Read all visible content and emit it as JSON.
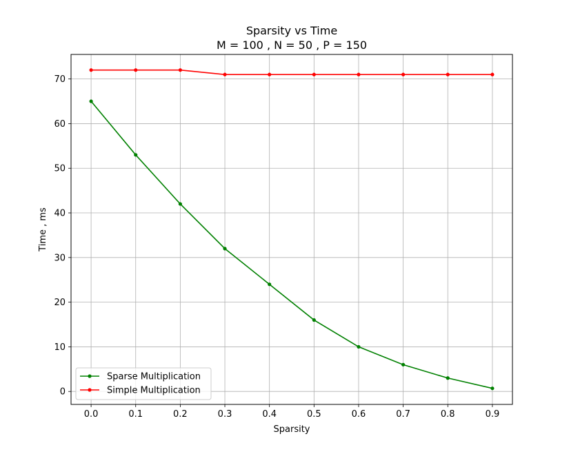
{
  "chart_data": {
    "type": "line",
    "title": "Sparsity vs Time",
    "subtitle": "M = 100 , N = 50 , P = 150",
    "xlabel": "Sparsity",
    "ylabel": "Time , ms",
    "x": [
      0.0,
      0.1,
      0.2,
      0.3,
      0.4,
      0.5,
      0.6,
      0.7,
      0.8,
      0.9
    ],
    "x_tick_labels": [
      "0.0",
      "0.1",
      "0.2",
      "0.3",
      "0.4",
      "0.5",
      "0.6",
      "0.7",
      "0.8",
      "0.9"
    ],
    "y_ticks": [
      0,
      10,
      20,
      30,
      40,
      50,
      60,
      70
    ],
    "y_tick_labels": [
      "0",
      "10",
      "20",
      "30",
      "40",
      "50",
      "60",
      "70"
    ],
    "xlim": [
      -0.045,
      0.945
    ],
    "ylim": [
      -2.9,
      75.5
    ],
    "grid": true,
    "legend_position": "lower-left",
    "series": [
      {
        "name": "Sparse Multiplication",
        "color": "#008000",
        "values": [
          65,
          53,
          42,
          32,
          24,
          16,
          10,
          6,
          3,
          0.7
        ]
      },
      {
        "name": "Simple Multiplication",
        "color": "#ff0000",
        "values": [
          72,
          72,
          72,
          71,
          71,
          71,
          71,
          71,
          71,
          71
        ]
      }
    ]
  }
}
